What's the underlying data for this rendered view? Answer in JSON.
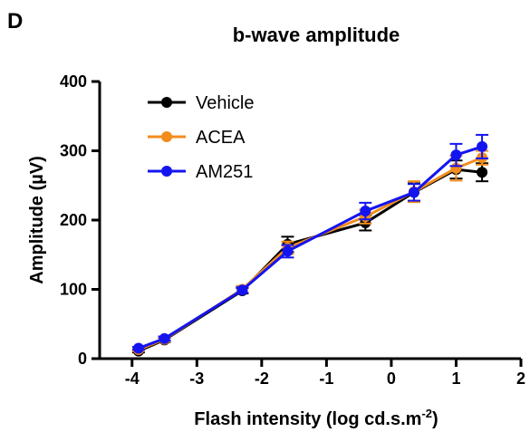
{
  "panel_label": "D",
  "chart_data": {
    "type": "line",
    "title": "b-wave amplitude",
    "xlabel": "Flash intensity (log cd.s.m",
    "xlabel_superscript": "-2",
    "xlabel_suffix": ")",
    "ylabel": "Amplitude (µV)",
    "xlim": [
      -4.5,
      2
    ],
    "ylim": [
      0,
      400
    ],
    "xticks": [
      -4,
      -3,
      -2,
      -1,
      0,
      1,
      2
    ],
    "yticks": [
      0,
      100,
      200,
      300,
      400
    ],
    "x": [
      -3.9,
      -3.5,
      -2.3,
      -1.6,
      -0.4,
      0.35,
      1.0,
      1.4
    ],
    "grid": false,
    "legend_position": "top-left",
    "series": [
      {
        "name": "Vehicle",
        "color": "#000000",
        "values": [
          11,
          27,
          98,
          165,
          196,
          240,
          273,
          269
        ],
        "errors": [
          2,
          3,
          4,
          11,
          11,
          13,
          13,
          13
        ]
      },
      {
        "name": "ACEA",
        "color": "#f28c1c",
        "values": [
          13,
          28,
          100,
          160,
          205,
          241,
          275,
          290
        ],
        "errors": [
          2,
          3,
          5,
          9,
          10,
          15,
          18,
          10
        ]
      },
      {
        "name": "AM251",
        "color": "#1414f0",
        "values": [
          15,
          29,
          99,
          155,
          213,
          240,
          294,
          306
        ],
        "errors": [
          2,
          3,
          4,
          9,
          12,
          12,
          16,
          17
        ]
      }
    ]
  }
}
